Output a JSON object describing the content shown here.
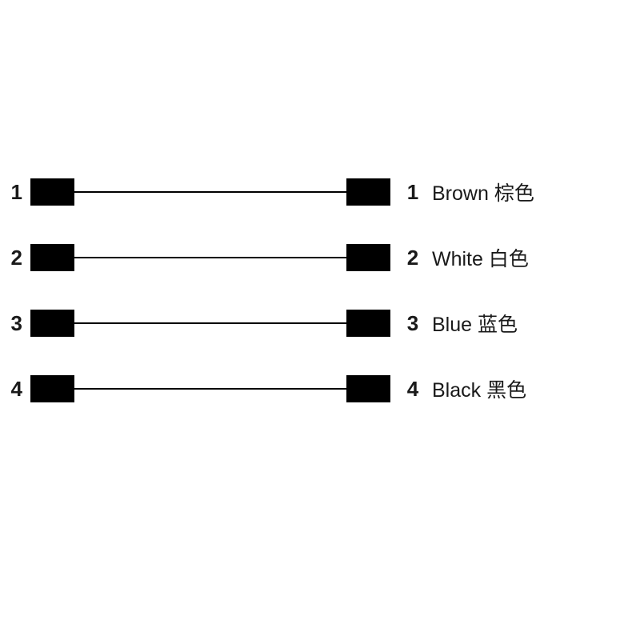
{
  "diagram": {
    "type": "wiring-diagram",
    "background_color": "#ffffff",
    "block_color": "#000000",
    "line_color": "#000000",
    "text_color": "#1a1a1a",
    "number_fontsize": 26,
    "label_fontsize": 25,
    "number_fontweight": "bold",
    "block_width": 55,
    "block_height": 34,
    "line_width": 340,
    "line_thickness": 2,
    "row_spacing": 42,
    "wires": [
      {
        "left_pin": "1",
        "right_pin": "1",
        "color_en": "Brown",
        "color_zh": "棕色"
      },
      {
        "left_pin": "2",
        "right_pin": "2",
        "color_en": "White",
        "color_zh": "白色"
      },
      {
        "left_pin": "3",
        "right_pin": "3",
        "color_en": "Blue",
        "color_zh": "蓝色"
      },
      {
        "left_pin": "4",
        "right_pin": "4",
        "color_en": "Black",
        "color_zh": "黑色"
      }
    ]
  }
}
